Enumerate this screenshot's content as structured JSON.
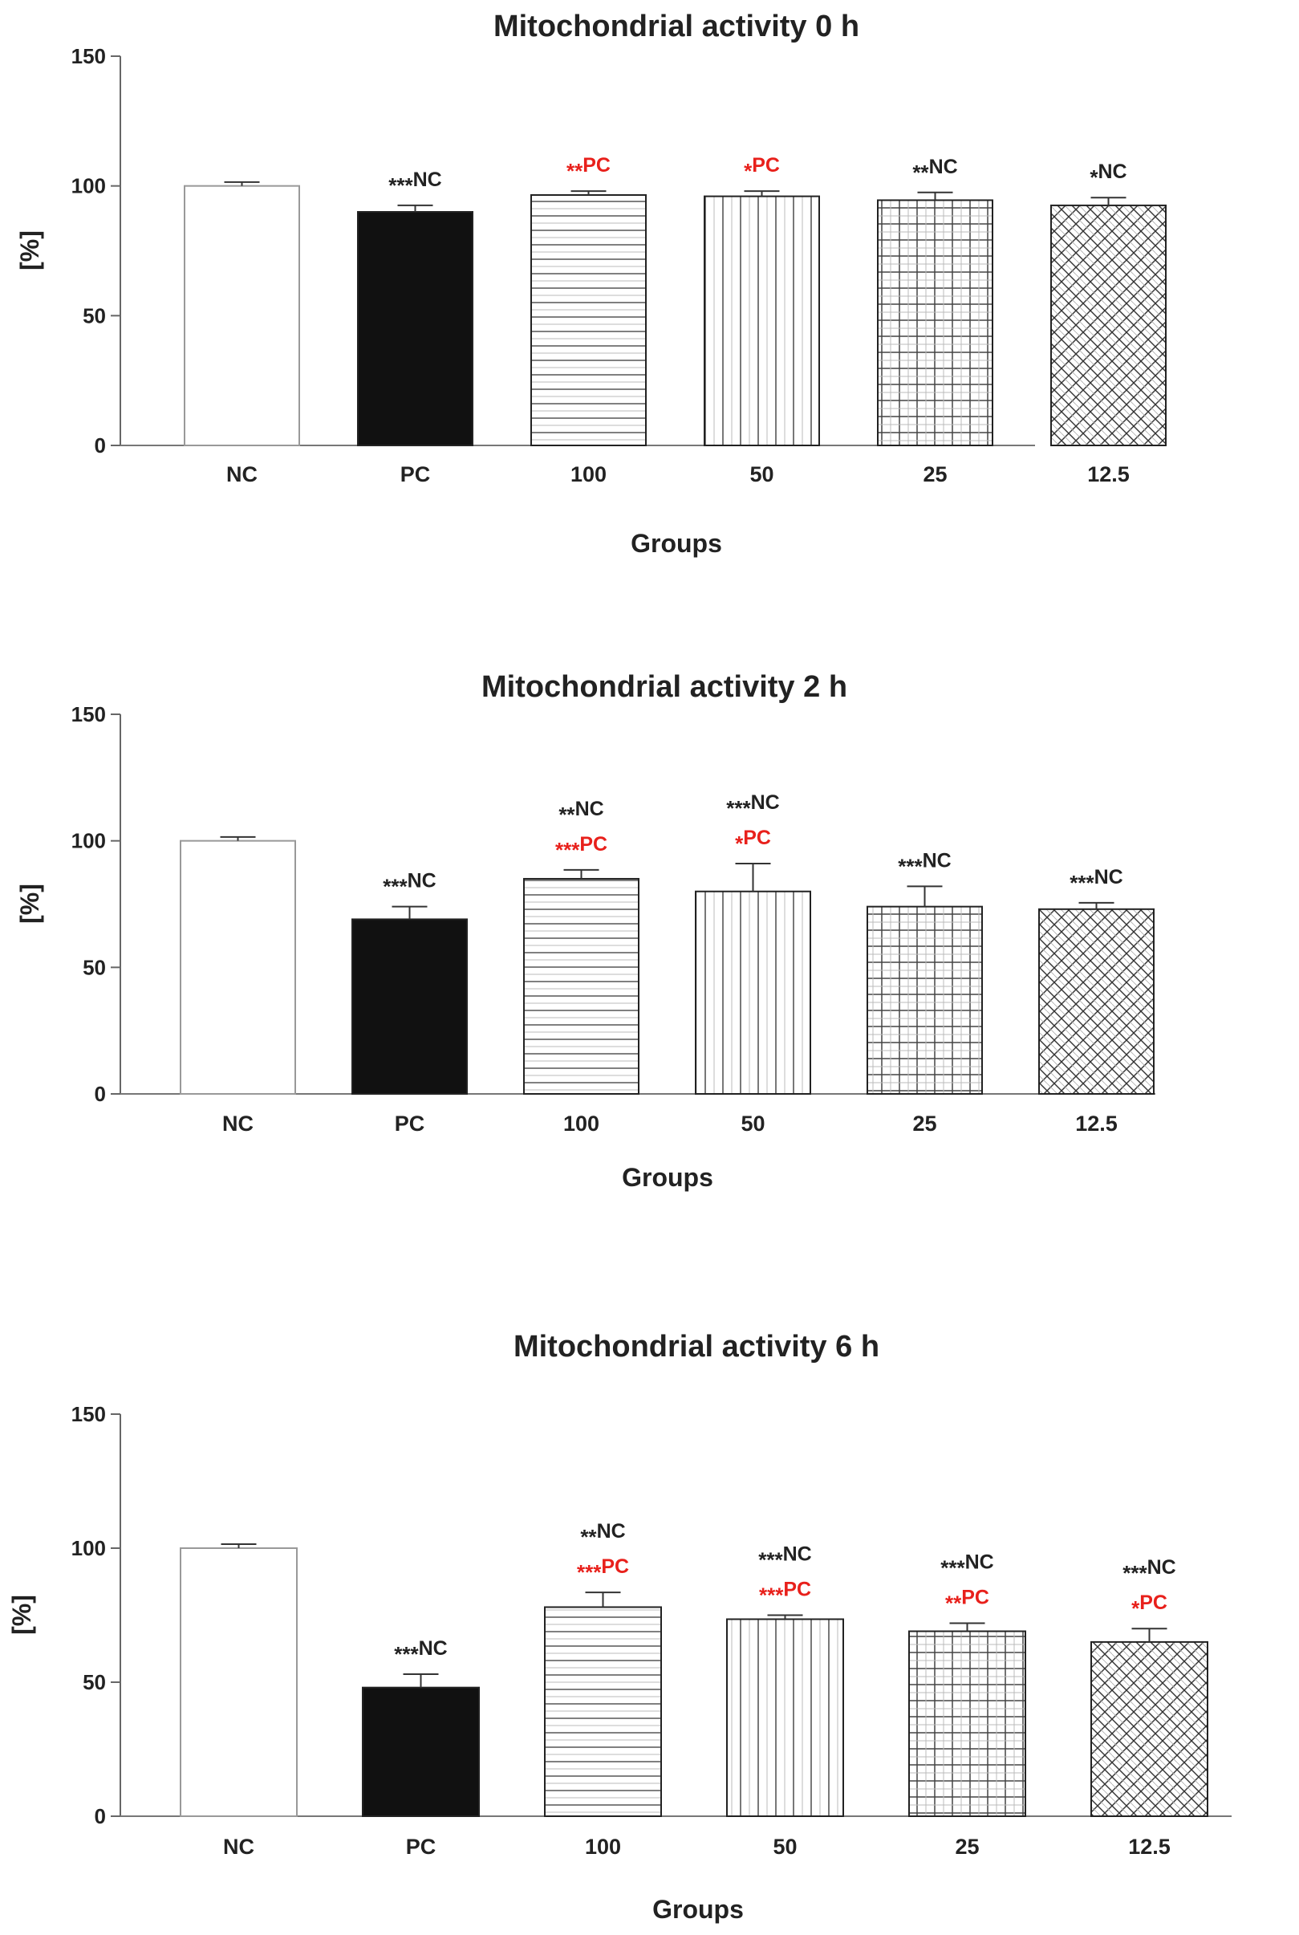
{
  "chart_data": [
    {
      "type": "bar",
      "title": "Mitochondrial activity 0 h",
      "xlabel": "Groups",
      "ylabel": "[%]",
      "ylim": [
        0,
        150
      ],
      "yticks": [
        "0",
        "50",
        "100",
        "150"
      ],
      "categories": [
        "NC",
        "PC",
        "100",
        "50",
        "25",
        "12.5"
      ],
      "values": [
        100,
        90,
        96.5,
        96,
        94.5,
        92.5
      ],
      "errors": [
        1.5,
        2.5,
        1.5,
        2,
        3,
        3
      ],
      "patterns": [
        "white",
        "black",
        "hlines",
        "vlines",
        "grid",
        "crosshatch"
      ],
      "annotations": [
        [],
        [
          {
            "stars": "***",
            "label": "NC",
            "color": "#222222"
          }
        ],
        [
          {
            "stars": "**",
            "label": "PC",
            "color": "#e8201b"
          }
        ],
        [
          {
            "stars": "*",
            "label": "PC",
            "color": "#e8201b"
          }
        ],
        [
          {
            "stars": "**",
            "label": "NC",
            "color": "#222222"
          }
        ],
        [
          {
            "stars": "*",
            "label": "NC",
            "color": "#222222"
          }
        ]
      ]
    },
    {
      "type": "bar",
      "title": "Mitochondrial activity 2 h",
      "xlabel": "Groups",
      "ylabel": "[%]",
      "ylim": [
        0,
        150
      ],
      "yticks": [
        "0",
        "50",
        "100",
        "150"
      ],
      "categories": [
        "NC",
        "PC",
        "100",
        "50",
        "25",
        "12.5"
      ],
      "values": [
        100,
        69,
        85,
        80,
        74,
        73
      ],
      "errors": [
        1.5,
        5,
        3.5,
        11,
        8,
        2.5
      ],
      "patterns": [
        "white",
        "black",
        "hlines",
        "vlines",
        "grid",
        "crosshatch"
      ],
      "annotations": [
        [],
        [
          {
            "stars": "***",
            "label": "NC",
            "color": "#222222"
          }
        ],
        [
          {
            "stars": "**",
            "label": "NC",
            "color": "#222222"
          },
          {
            "stars": "***",
            "label": "PC",
            "color": "#e8201b"
          }
        ],
        [
          {
            "stars": "***",
            "label": "NC",
            "color": "#222222"
          },
          {
            "stars": "*",
            "label": "PC",
            "color": "#e8201b"
          }
        ],
        [
          {
            "stars": "***",
            "label": "NC",
            "color": "#222222"
          }
        ],
        [
          {
            "stars": "***",
            "label": "NC",
            "color": "#222222"
          }
        ]
      ]
    },
    {
      "type": "bar",
      "title": "Mitochondrial activity 6 h",
      "xlabel": "Groups",
      "ylabel": "[%]",
      "ylim": [
        0,
        150
      ],
      "yticks": [
        "0",
        "50",
        "100",
        "150"
      ],
      "categories": [
        "NC",
        "PC",
        "100",
        "50",
        "25",
        "12.5"
      ],
      "values": [
        100,
        48,
        78,
        73.5,
        69,
        65
      ],
      "errors": [
        1.5,
        5,
        5.5,
        1.5,
        3,
        5
      ],
      "patterns": [
        "white",
        "black",
        "hlines",
        "vlines",
        "grid",
        "crosshatch"
      ],
      "annotations": [
        [],
        [
          {
            "stars": "***",
            "label": "NC",
            "color": "#222222"
          }
        ],
        [
          {
            "stars": "**",
            "label": "NC",
            "color": "#222222"
          },
          {
            "stars": "***",
            "label": "PC",
            "color": "#e8201b"
          }
        ],
        [
          {
            "stars": "***",
            "label": "NC",
            "color": "#222222"
          },
          {
            "stars": "***",
            "label": "PC",
            "color": "#e8201b"
          }
        ],
        [
          {
            "stars": "***",
            "label": "NC",
            "color": "#222222"
          },
          {
            "stars": "**",
            "label": "PC",
            "color": "#e8201b"
          }
        ],
        [
          {
            "stars": "***",
            "label": "NC",
            "color": "#222222"
          },
          {
            "stars": "*",
            "label": "PC",
            "color": "#e8201b"
          }
        ]
      ]
    }
  ]
}
